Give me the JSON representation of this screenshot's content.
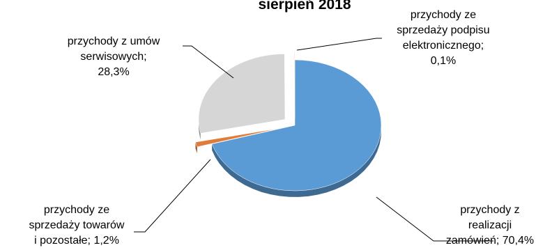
{
  "chart_data": {
    "type": "pie",
    "title": "sierpień 2018",
    "slices": [
      {
        "name": "przychody z realizacji zamówień",
        "value": 70.4,
        "label_lines": [
          "przychody z",
          "realizacji",
          "zamówień; 70,4%"
        ],
        "color": "#5b9bd5"
      },
      {
        "name": "przychody ze sprzedaży towarów i pozostałe",
        "value": 1.2,
        "label_lines": [
          "przychody ze",
          "sprzedaży towarów",
          "i pozostałe; 1,2%"
        ],
        "color": "#e07b39"
      },
      {
        "name": "przychody z umów serwisowych",
        "value": 28.3,
        "label_lines": [
          "przychody z umów",
          "serwisowych;",
          "28,3%"
        ],
        "color": "#d6d6d6"
      },
      {
        "name": "przychody ze sprzedaży podpisu elektronicznego",
        "value": 0.1,
        "label_lines": [
          "przychody ze",
          "sprzedaży podpisu",
          "elektronicznego;",
          "0,1%"
        ],
        "color": "#f2c200"
      }
    ],
    "legend": "none",
    "style": "3d-exploded"
  }
}
